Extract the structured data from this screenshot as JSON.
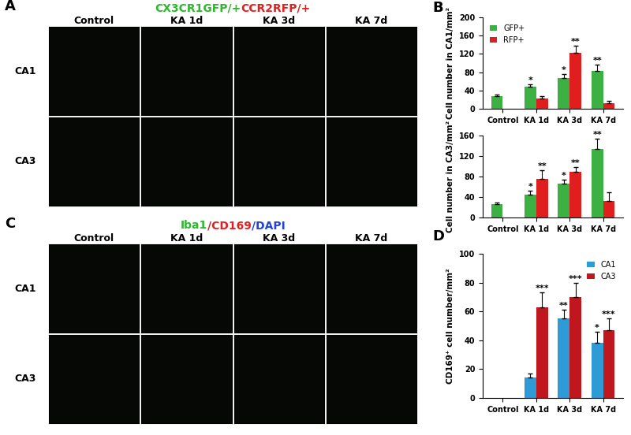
{
  "panel_letters": [
    "A",
    "B",
    "C",
    "D"
  ],
  "image_panels": [
    {
      "title_parts": [
        {
          "text": "CX3CR1GFP/+",
          "color": "#2db82d"
        },
        {
          "text": "CCR2RFP/+",
          "color": "#e02020"
        }
      ],
      "columns": [
        "Control",
        "KA 1d",
        "KA 3d",
        "KA 7d"
      ],
      "rows": [
        "CA1",
        "CA3"
      ]
    },
    {
      "title_parts": [
        {
          "text": "Iba1",
          "color": "#2db82d"
        },
        {
          "text": "/CD169",
          "color": "#e02020"
        },
        {
          "text": "/DAPI",
          "color": "#2040e0"
        }
      ],
      "columns": [
        "Control",
        "KA 1d",
        "KA 3d",
        "KA 7d"
      ],
      "rows": [
        "CA1",
        "CA3"
      ]
    }
  ],
  "chart_data": [
    {
      "type": "bar",
      "y_label": "Cell number in CA1/mm²",
      "categories": [
        "Control",
        "KA 1d",
        "KA 3d",
        "KA 7d"
      ],
      "series": [
        {
          "name": "GFP+",
          "color": "#3cb043",
          "values": [
            28,
            48,
            68,
            83
          ],
          "errors": [
            3,
            6,
            8,
            13
          ],
          "significance": [
            null,
            "*",
            "*",
            "**"
          ]
        },
        {
          "name": "RFP+",
          "color": "#e01e1e",
          "values": [
            null,
            22,
            122,
            12
          ],
          "errors": [
            null,
            5,
            16,
            5
          ],
          "significance": [
            null,
            null,
            "**",
            null
          ]
        }
      ],
      "ylim": [
        0,
        200
      ],
      "yticks": [
        0,
        40,
        80,
        120,
        160,
        200
      ],
      "legend": "upper left"
    },
    {
      "type": "bar",
      "y_label": "Cell number in CA3/mm²",
      "categories": [
        "Control",
        "KA 1d",
        "KA 3d",
        "KA 7d"
      ],
      "series": [
        {
          "name": "GFP+",
          "color": "#3cb043",
          "values": [
            26,
            44,
            66,
            134
          ],
          "errors": [
            3,
            8,
            8,
            20
          ],
          "significance": [
            null,
            "*",
            "*",
            "**"
          ]
        },
        {
          "name": "RFP+",
          "color": "#e01e1e",
          "values": [
            null,
            76,
            89,
            33
          ],
          "errors": [
            null,
            16,
            10,
            16
          ],
          "significance": [
            null,
            "**",
            "**",
            null
          ]
        }
      ],
      "ylim": [
        0,
        160
      ],
      "yticks": [
        0,
        40,
        80,
        120,
        160
      ]
    },
    {
      "type": "bar",
      "y_label": "CD169⁺ cell number/mm²",
      "categories": [
        "Control",
        "KA 1d",
        "KA 3d",
        "KA 7d"
      ],
      "series": [
        {
          "name": "CA1",
          "color": "#2e9bd6",
          "values": [
            null,
            14,
            55,
            38
          ],
          "errors": [
            null,
            3,
            6,
            8
          ],
          "significance": [
            null,
            null,
            "**",
            "*"
          ]
        },
        {
          "name": "CA3",
          "color": "#c0161e",
          "values": [
            null,
            63,
            70,
            47
          ],
          "errors": [
            null,
            10,
            10,
            8
          ],
          "significance": [
            null,
            "***",
            "***",
            "***"
          ]
        }
      ],
      "ylim": [
        0,
        100
      ],
      "yticks": [
        0,
        20,
        40,
        60,
        80,
        100
      ],
      "legend": "upper right"
    }
  ]
}
